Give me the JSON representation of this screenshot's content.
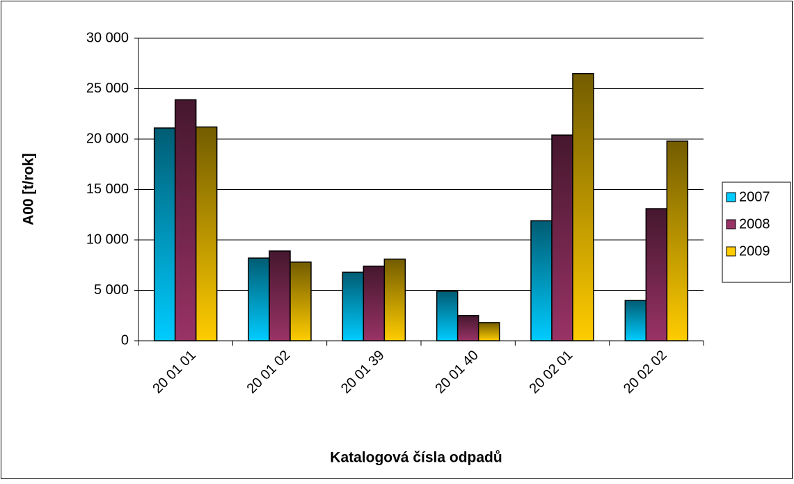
{
  "chart_data": {
    "type": "bar",
    "categories": [
      "20 01 01",
      "20 01 02",
      "20 01 39",
      "20 01 40",
      "20 02 01",
      "20 02 02"
    ],
    "series": [
      {
        "name": "2007",
        "color": "#00ccff",
        "values": [
          21100,
          8200,
          6800,
          4900,
          11900,
          4000
        ]
      },
      {
        "name": "2008",
        "color": "#993366",
        "values": [
          23900,
          8900,
          7400,
          2500,
          20400,
          13100
        ]
      },
      {
        "name": "2009",
        "color": "#ffcc00",
        "values": [
          21200,
          7800,
          8100,
          1800,
          26500,
          19800
        ]
      }
    ],
    "ylabel": "A00 [t/rok]",
    "xlabel": "Katalogová čísla odpadů",
    "ylim": [
      0,
      30000
    ],
    "yticks": [
      0,
      {
        "value": 5000,
        "label": "5 000"
      },
      {
        "value": 10000,
        "label": "10 000"
      },
      {
        "value": 15000,
        "label": "15 000"
      },
      {
        "value": 20000,
        "label": "20 000"
      },
      {
        "value": 25000,
        "label": "25 000"
      },
      {
        "value": 30000,
        "label": "30 000"
      }
    ],
    "grid": true,
    "legend": "right"
  }
}
